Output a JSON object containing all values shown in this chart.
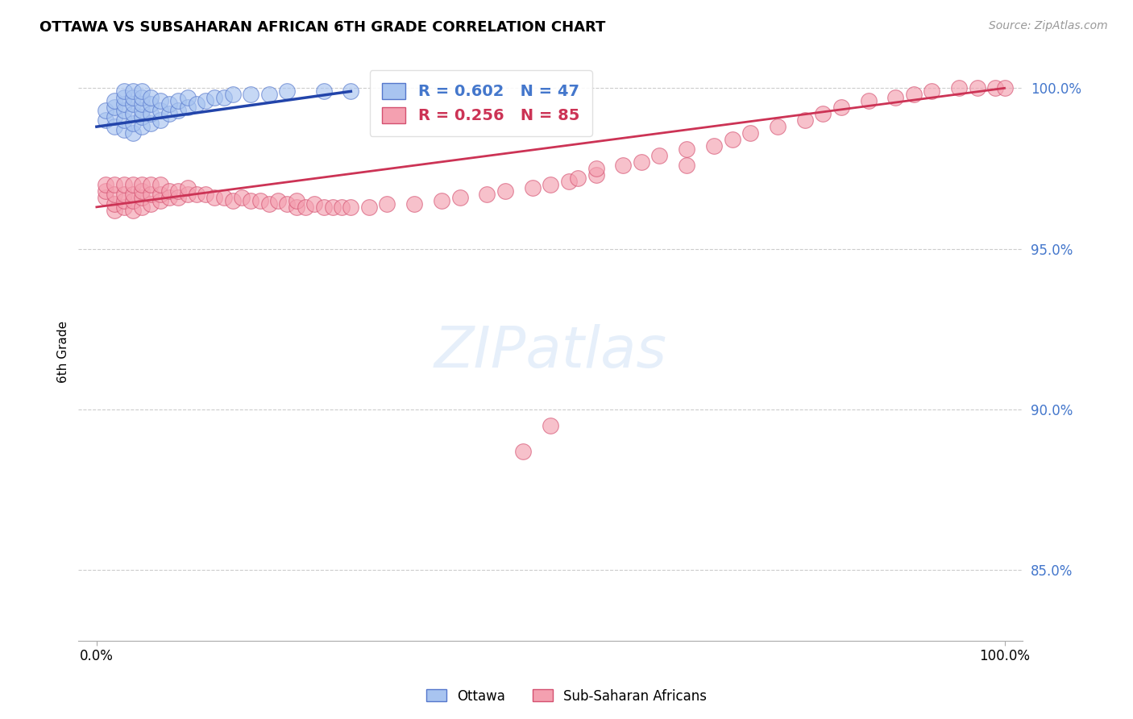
{
  "title": "OTTAWA VS SUBSAHARAN AFRICAN 6TH GRADE CORRELATION CHART",
  "source": "Source: ZipAtlas.com",
  "ylabel": "6th Grade",
  "legend_ottawa": "Ottawa",
  "legend_ssa": "Sub-Saharan Africans",
  "r_ottawa": 0.602,
  "n_ottawa": 47,
  "r_ssa": 0.256,
  "n_ssa": 85,
  "ymin": 0.828,
  "ymax": 1.008,
  "xmin": -0.02,
  "xmax": 1.02,
  "blue_color": "#a8c4f0",
  "pink_color": "#f4a0b0",
  "blue_edge_color": "#5577cc",
  "pink_edge_color": "#d45070",
  "blue_line_color": "#2244aa",
  "pink_line_color": "#cc3355",
  "ottawa_x": [
    0.01,
    0.01,
    0.02,
    0.02,
    0.02,
    0.02,
    0.03,
    0.03,
    0.03,
    0.03,
    0.03,
    0.03,
    0.04,
    0.04,
    0.04,
    0.04,
    0.04,
    0.04,
    0.05,
    0.05,
    0.05,
    0.05,
    0.05,
    0.05,
    0.06,
    0.06,
    0.06,
    0.06,
    0.07,
    0.07,
    0.07,
    0.08,
    0.08,
    0.09,
    0.09,
    0.1,
    0.1,
    0.11,
    0.12,
    0.13,
    0.14,
    0.15,
    0.17,
    0.19,
    0.21,
    0.25,
    0.28
  ],
  "ottawa_y": [
    0.99,
    0.993,
    0.988,
    0.991,
    0.994,
    0.996,
    0.987,
    0.99,
    0.993,
    0.995,
    0.997,
    0.999,
    0.986,
    0.989,
    0.992,
    0.995,
    0.997,
    0.999,
    0.988,
    0.991,
    0.993,
    0.995,
    0.997,
    0.999,
    0.989,
    0.992,
    0.995,
    0.997,
    0.99,
    0.993,
    0.996,
    0.992,
    0.995,
    0.993,
    0.996,
    0.994,
    0.997,
    0.995,
    0.996,
    0.997,
    0.997,
    0.998,
    0.998,
    0.998,
    0.999,
    0.999,
    0.999
  ],
  "ssa_x": [
    0.01,
    0.01,
    0.01,
    0.02,
    0.02,
    0.02,
    0.02,
    0.03,
    0.03,
    0.03,
    0.03,
    0.04,
    0.04,
    0.04,
    0.04,
    0.05,
    0.05,
    0.05,
    0.05,
    0.06,
    0.06,
    0.06,
    0.07,
    0.07,
    0.07,
    0.08,
    0.08,
    0.09,
    0.09,
    0.1,
    0.1,
    0.11,
    0.12,
    0.13,
    0.14,
    0.15,
    0.16,
    0.17,
    0.18,
    0.19,
    0.2,
    0.21,
    0.22,
    0.22,
    0.23,
    0.24,
    0.25,
    0.26,
    0.27,
    0.28,
    0.3,
    0.32,
    0.35,
    0.38,
    0.4,
    0.43,
    0.45,
    0.48,
    0.5,
    0.52,
    0.53,
    0.55,
    0.55,
    0.58,
    0.6,
    0.62,
    0.65,
    0.68,
    0.7,
    0.72,
    0.75,
    0.78,
    0.8,
    0.82,
    0.85,
    0.88,
    0.9,
    0.92,
    0.95,
    0.97,
    0.99,
    1.0,
    0.65,
    0.5,
    0.47
  ],
  "ssa_y": [
    0.966,
    0.968,
    0.97,
    0.962,
    0.964,
    0.967,
    0.97,
    0.963,
    0.965,
    0.967,
    0.97,
    0.962,
    0.965,
    0.967,
    0.97,
    0.963,
    0.966,
    0.968,
    0.97,
    0.964,
    0.967,
    0.97,
    0.965,
    0.967,
    0.97,
    0.966,
    0.968,
    0.966,
    0.968,
    0.967,
    0.969,
    0.967,
    0.967,
    0.966,
    0.966,
    0.965,
    0.966,
    0.965,
    0.965,
    0.964,
    0.965,
    0.964,
    0.963,
    0.965,
    0.963,
    0.964,
    0.963,
    0.963,
    0.963,
    0.963,
    0.963,
    0.964,
    0.964,
    0.965,
    0.966,
    0.967,
    0.968,
    0.969,
    0.97,
    0.971,
    0.972,
    0.973,
    0.975,
    0.976,
    0.977,
    0.979,
    0.981,
    0.982,
    0.984,
    0.986,
    0.988,
    0.99,
    0.992,
    0.994,
    0.996,
    0.997,
    0.998,
    0.999,
    1.0,
    1.0,
    1.0,
    1.0,
    0.976,
    0.895,
    0.887
  ],
  "pink_line_x0": 0.0,
  "pink_line_y0": 0.963,
  "pink_line_x1": 1.0,
  "pink_line_y1": 1.0,
  "blue_line_x0": 0.0,
  "blue_line_y0": 0.988,
  "blue_line_x1": 0.28,
  "blue_line_y1": 0.999
}
